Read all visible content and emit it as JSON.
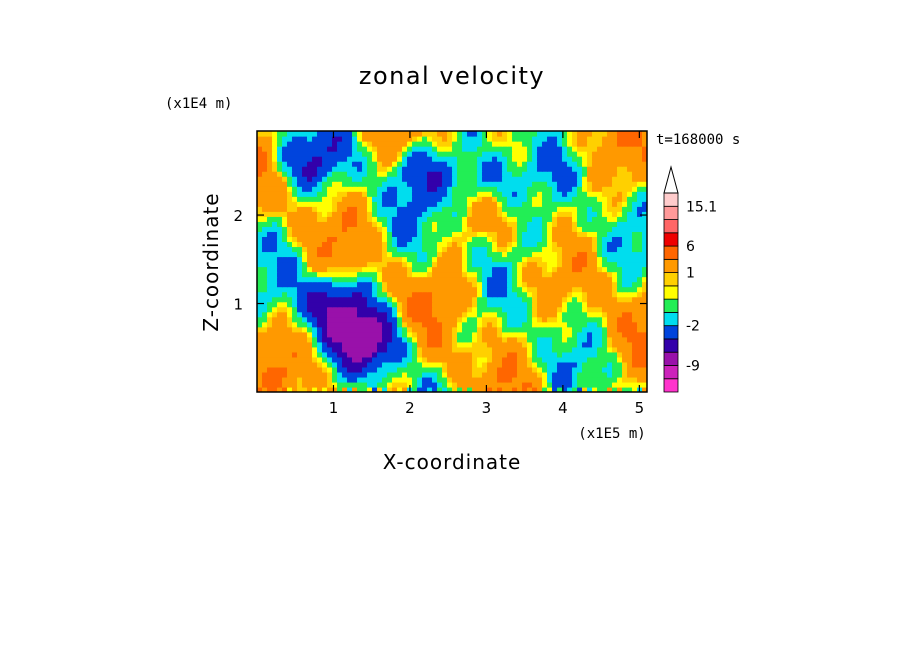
{
  "chart_data": {
    "type": "heatmap",
    "title": "zonal velocity",
    "xlabel": "X-coordinate",
    "ylabel": "Z-coordinate",
    "x_unit": "(x1E5 m)",
    "y_unit": "(x1E4 m)",
    "time_label": "t=168000 s",
    "xlim": [
      0,
      5.1
    ],
    "ylim": [
      0,
      2.95
    ],
    "x_ticks": [
      1,
      2,
      3,
      4,
      5
    ],
    "y_ticks": [
      1,
      2
    ],
    "colorbar": {
      "levels": [
        {
          "lo": -15,
          "hi": -12,
          "color": "#ff33cc"
        },
        {
          "lo": -12,
          "hi": -9,
          "color": "#cc22bb"
        },
        {
          "lo": -9,
          "hi": -6,
          "color": "#9911aa"
        },
        {
          "lo": -6,
          "hi": -4,
          "color": "#3300aa"
        },
        {
          "lo": -4,
          "hi": -2,
          "color": "#0044dd"
        },
        {
          "lo": -2,
          "hi": -1,
          "color": "#00ddee"
        },
        {
          "lo": -1,
          "hi": 0,
          "color": "#22ee55"
        },
        {
          "lo": 0,
          "hi": 0.5,
          "color": "#ffff00"
        },
        {
          "lo": 0.5,
          "hi": 1,
          "color": "#ffd000"
        },
        {
          "lo": 1,
          "hi": 3,
          "color": "#ff9900"
        },
        {
          "lo": 3,
          "hi": 6,
          "color": "#ff6600"
        },
        {
          "lo": 6,
          "hi": 9,
          "color": "#ee0000"
        },
        {
          "lo": 9,
          "hi": 12,
          "color": "#ff6666"
        },
        {
          "lo": 12,
          "hi": 15.1,
          "color": "#ff9999"
        },
        {
          "lo": 15.1,
          "hi": 18,
          "color": "#ffcccc"
        }
      ],
      "tick_labels": [
        "15.1",
        "6",
        "1",
        "-2",
        "-9"
      ],
      "tick_values": [
        15.1,
        6,
        1,
        -2,
        -9
      ],
      "extend": "max"
    },
    "field_features": [
      {
        "x": 1.0,
        "z": 1.0,
        "value": -5
      },
      {
        "x": 1.5,
        "z": 0.6,
        "value": -6
      },
      {
        "x": 2.2,
        "z": 2.5,
        "value": -3
      },
      {
        "x": 3.0,
        "z": 2.4,
        "value": -4
      },
      {
        "x": 4.0,
        "z": 1.0,
        "value": 0.3
      },
      {
        "x": 2.7,
        "z": 1.1,
        "value": 2
      },
      {
        "x": 0.6,
        "z": 2.6,
        "value": -3
      },
      {
        "x": 3.8,
        "z": 1.7,
        "value": -1.5
      }
    ]
  }
}
